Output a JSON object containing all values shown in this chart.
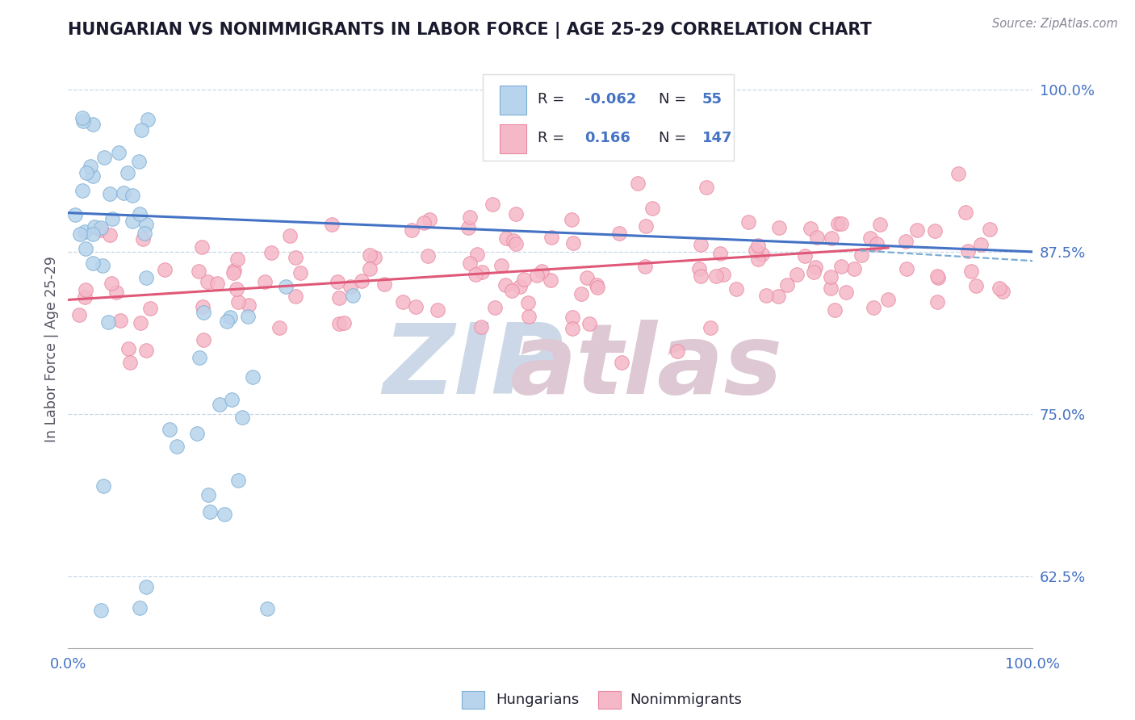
{
  "title": "HUNGARIAN VS NONIMMIGRANTS IN LABOR FORCE | AGE 25-29 CORRELATION CHART",
  "source": "Source: ZipAtlas.com",
  "ylabel": "In Labor Force | Age 25-29",
  "xlim": [
    0.0,
    1.0
  ],
  "ylim": [
    0.57,
    1.03
  ],
  "yticks": [
    0.625,
    0.75,
    0.875,
    1.0
  ],
  "ytick_labels": [
    "62.5%",
    "75.0%",
    "87.5%",
    "100.0%"
  ],
  "xtick_labels": [
    "0.0%",
    "100.0%"
  ],
  "legend_r_blue": "-0.062",
  "legend_n_blue": "55",
  "legend_r_pink": "0.166",
  "legend_n_pink": "147",
  "blue_fill": "#b8d4ec",
  "blue_edge": "#7badd4",
  "pink_fill": "#f5b8c8",
  "pink_edge": "#e888a0",
  "blue_line_color": "#4472c4",
  "pink_line_color": "#e05878",
  "dashed_line_color": "#7badd4",
  "grid_color": "#c8d8e8",
  "axis_color": "#aaaaaa",
  "title_color": "#1a1a2e",
  "label_color": "#555566",
  "tick_color": "#4472c4",
  "source_color": "#888899",
  "legend_text_color": "#222233",
  "watermark_zip_color": "#ccd8e8",
  "watermark_atlas_color": "#ddc8d4"
}
